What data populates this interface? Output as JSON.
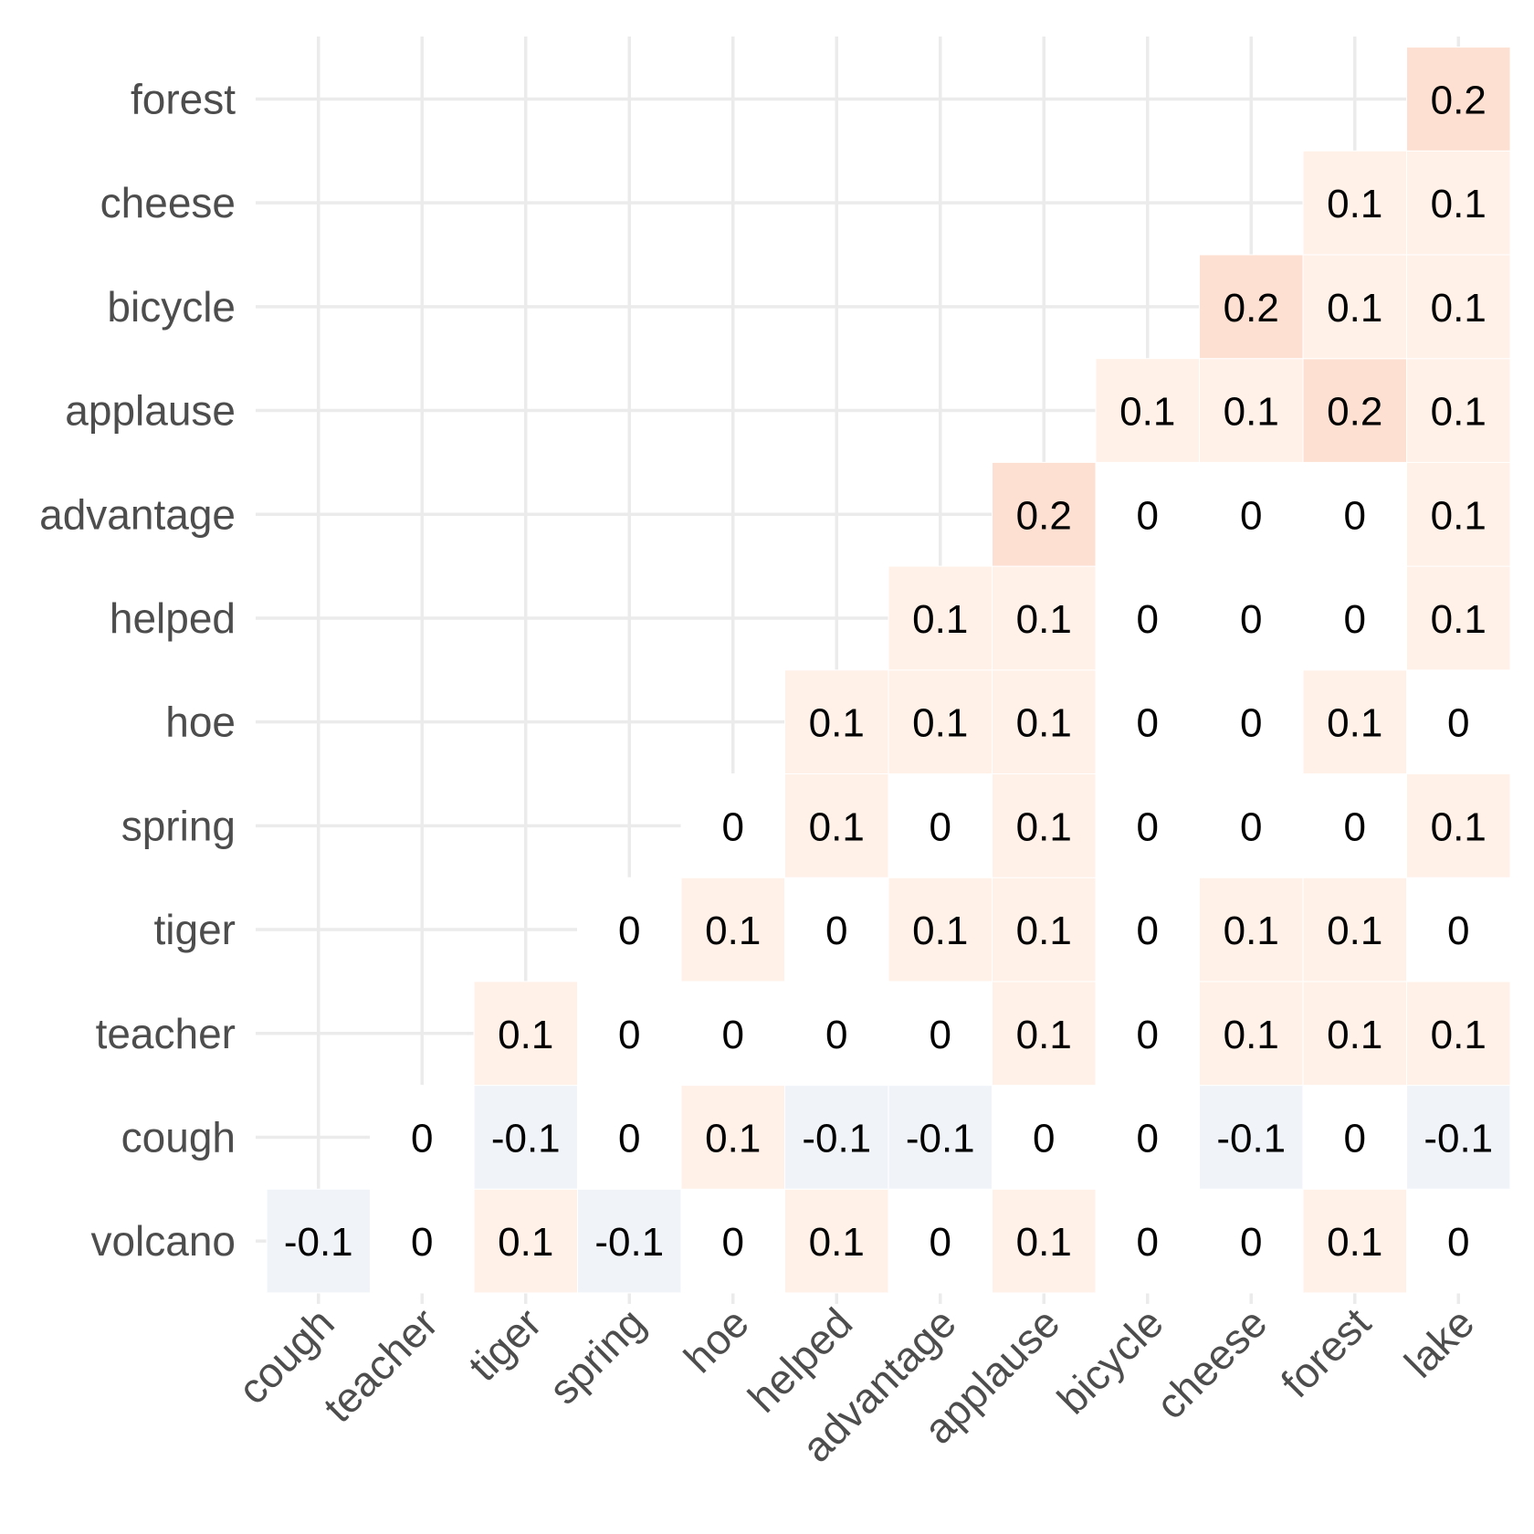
{
  "chart_data": {
    "type": "heatmap",
    "title": "",
    "xlabel": "",
    "ylabel": "",
    "x_categories": [
      "cough",
      "teacher",
      "tiger",
      "spring",
      "hoe",
      "helped",
      "advantage",
      "applause",
      "bicycle",
      "cheese",
      "forest",
      "lake"
    ],
    "y_categories": [
      "volcano",
      "cough",
      "teacher",
      "tiger",
      "spring",
      "hoe",
      "helped",
      "advantage",
      "applause",
      "bicycle",
      "cheese",
      "forest"
    ],
    "values": [
      [
        -0.1,
        0,
        0.1,
        -0.1,
        0,
        0.1,
        0,
        0.1,
        0,
        0,
        0.1,
        0
      ],
      [
        null,
        0,
        -0.1,
        0,
        0.1,
        -0.1,
        -0.1,
        0,
        0,
        -0.1,
        0,
        -0.1
      ],
      [
        null,
        null,
        0.1,
        0,
        0,
        0,
        0,
        0.1,
        0,
        0.1,
        0.1,
        0.1
      ],
      [
        null,
        null,
        null,
        0,
        0.1,
        0,
        0.1,
        0.1,
        0,
        0.1,
        0.1,
        0
      ],
      [
        null,
        null,
        null,
        null,
        0,
        0.1,
        0,
        0.1,
        0,
        0,
        0,
        0.1
      ],
      [
        null,
        null,
        null,
        null,
        null,
        0.1,
        0.1,
        0.1,
        0,
        0,
        0.1,
        0
      ],
      [
        null,
        null,
        null,
        null,
        null,
        null,
        0.1,
        0.1,
        0,
        0,
        0,
        0.1
      ],
      [
        null,
        null,
        null,
        null,
        null,
        null,
        null,
        0.2,
        0,
        0,
        0,
        0.1
      ],
      [
        null,
        null,
        null,
        null,
        null,
        null,
        null,
        null,
        0.1,
        0.1,
        0.2,
        0.1
      ],
      [
        null,
        null,
        null,
        null,
        null,
        null,
        null,
        null,
        null,
        0.2,
        0.1,
        0.1
      ],
      [
        null,
        null,
        null,
        null,
        null,
        null,
        null,
        null,
        null,
        null,
        0.1,
        0.1
      ],
      [
        null,
        null,
        null,
        null,
        null,
        null,
        null,
        null,
        null,
        null,
        null,
        0.2
      ]
    ],
    "color_scale": {
      "negative": "#f0f4f9",
      "zero": "#ffffff",
      "pos_0_1": "#fff0e8",
      "pos_0_2": "#fde0d1"
    },
    "grid": true,
    "legend": "none"
  }
}
